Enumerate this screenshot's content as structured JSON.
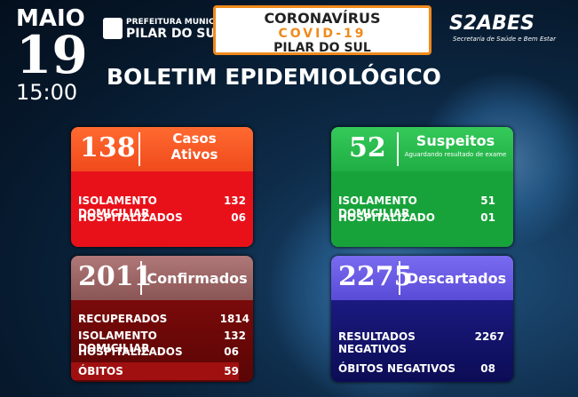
{
  "header": {
    "month": "MAIO",
    "day": "19",
    "time": "15:00",
    "city_hall": "PREFEITURA MUNICIPAL",
    "city": "PILAR DO SUL",
    "secretariat_logo": "S2ABES",
    "secretariat": "Secretaria de Saúde e Bem Estar",
    "title": "BOLETIM EPIDEMIOLÓGICO"
  },
  "banner": {
    "disease": "CORONAVÍRUS",
    "code": "COVID-19",
    "city": "PILAR DO SUL"
  },
  "cards": [
    {
      "total": "138",
      "label": [
        "Casos",
        "Ativos"
      ],
      "rows": [
        {
          "label": "ISOLAMENTO DOMICILIAR",
          "value": "132"
        },
        {
          "label": "HOSPITALIZADOS",
          "value": "06"
        }
      ]
    },
    {
      "total": "52",
      "label": [
        "Suspeitos"
      ],
      "note": "Aguardando resultado de exame",
      "rows": [
        {
          "label": "ISOLAMENTO DOMICILIAR",
          "value": "51"
        },
        {
          "label": "HOSPITALIZADO",
          "value": "01"
        }
      ]
    },
    {
      "total": "2011",
      "label": [
        "Confirmados"
      ],
      "rows": [
        {
          "label": "RECUPERADOS",
          "value": "1814"
        },
        {
          "label": "ISOLAMENTO DOMICILIAR",
          "value": "132"
        },
        {
          "label": "HOSPITALIZADOS",
          "value": "06"
        },
        {
          "label": "ÓBITOS",
          "value": "59"
        }
      ]
    },
    {
      "total": "2275",
      "label": [
        "Descartados"
      ],
      "rows": [
        {
          "label": "RESULTADOS NEGATIVOS",
          "value": "2267"
        },
        {
          "label": "ÓBITOS NEGATIVOS",
          "value": "08"
        }
      ]
    }
  ]
}
